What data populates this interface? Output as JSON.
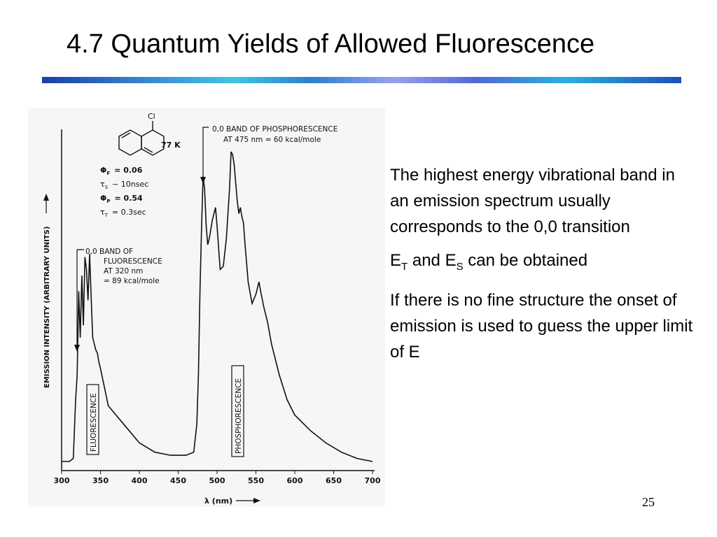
{
  "slide": {
    "title": "4.7 Quantum Yields of Allowed Fluorescence",
    "page_number": "25"
  },
  "figure": {
    "substituent": "Cl",
    "temperature": "77 K",
    "params": [
      {
        "symbol": "Φ",
        "sub": "F",
        "value": "= 0.06"
      },
      {
        "symbol": "τ",
        "sub": "S",
        "value": "~ 10nsec"
      },
      {
        "symbol": "Φ",
        "sub": "P",
        "value": "= 0.54"
      },
      {
        "symbol": "τ",
        "sub": "T",
        "value": "= 0.3sec"
      }
    ],
    "phos_note_line1": "0,0 BAND OF  PHOSPHORESCENCE",
    "phos_note_line2": "AT 475 nm = 60 kcal/mole",
    "fluor_note_line1": "0,0 BAND OF",
    "fluor_note_line2": "FLUORESCENCE",
    "fluor_note_line3": "AT 320 nm",
    "fluor_note_line4": "= 89 kcal/mole",
    "fluor_box_label": "FLUORESCENCE",
    "phos_box_label": "PHOSPHORESCENCE",
    "ylabel": "EMISSION INTENSITY (ARBITRARY UNITS)",
    "xlabel": "λ (nm)"
  },
  "chart_data": {
    "type": "line",
    "title": "",
    "xlabel": "λ (nm)",
    "ylabel": "EMISSION INTENSITY (ARBITRARY UNITS)",
    "xlim": [
      300,
      700
    ],
    "ylim": [
      0,
      100
    ],
    "x_ticks": [
      300,
      350,
      400,
      450,
      500,
      550,
      600,
      650,
      700
    ],
    "grid": false,
    "series": [
      {
        "x": [
          300,
          310,
          315,
          318,
          320,
          322,
          324,
          326,
          328,
          330,
          332,
          334,
          336,
          338,
          340,
          342,
          344,
          346,
          348,
          350,
          355,
          360,
          370,
          380,
          400,
          420,
          440,
          460,
          470,
          474,
          476,
          478,
          480,
          482,
          484,
          486,
          488,
          490,
          494,
          498,
          500,
          504,
          508,
          512,
          516,
          518,
          520,
          522,
          524,
          526,
          528,
          530,
          532,
          534,
          536,
          540,
          545,
          550,
          554,
          556,
          560,
          565,
          570,
          580,
          590,
          600,
          620,
          640,
          660,
          680,
          700
        ],
        "y": [
          0,
          0,
          1,
          20,
          28,
          55,
          40,
          60,
          44,
          66,
          62,
          52,
          67,
          53,
          40,
          38,
          36,
          35,
          32,
          30,
          24,
          18,
          15,
          12,
          6,
          3,
          2,
          2,
          3,
          12,
          28,
          55,
          75,
          92,
          88,
          76,
          70,
          72,
          78,
          82,
          76,
          62,
          63,
          72,
          88,
          100,
          99,
          96,
          90,
          84,
          80,
          82,
          79,
          77,
          70,
          58,
          51,
          54,
          58,
          55,
          50,
          45,
          38,
          28,
          20,
          15,
          10,
          6,
          3,
          1,
          0
        ]
      }
    ]
  },
  "bullets": {
    "b1": "The highest energy vibrational band in an emission spectrum usually corresponds to the 0,0 transition",
    "b2_main1": "E",
    "b2_sub1": "T",
    "b2_mid": " and E",
    "b2_sub2": "S",
    "b2_end": " can be obtained",
    "b3": "If there is no fine structure the onset of emission is used to guess the upper limit of E"
  }
}
